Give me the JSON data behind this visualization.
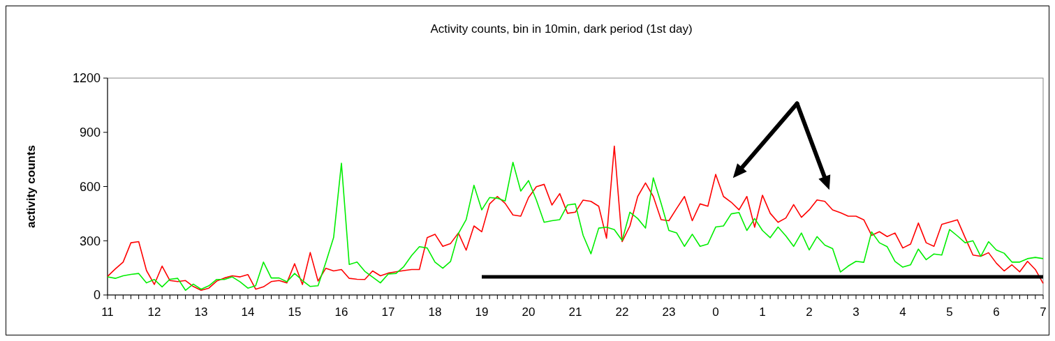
{
  "chart_data": {
    "type": "line",
    "title": "Activity counts, bin in 10min, dark period (1st day)",
    "ylabel": "activity counts",
    "categories": [
      "11",
      null,
      null,
      null,
      null,
      null,
      "12",
      null,
      null,
      null,
      null,
      null,
      "13",
      null,
      null,
      null,
      null,
      null,
      "14",
      null,
      null,
      null,
      null,
      null,
      "15",
      null,
      null,
      null,
      null,
      null,
      "16",
      null,
      null,
      null,
      null,
      null,
      "17",
      null,
      null,
      null,
      null,
      null,
      "18",
      null,
      null,
      null,
      null,
      null,
      "19",
      null,
      null,
      null,
      null,
      null,
      "20",
      null,
      null,
      null,
      null,
      null,
      "21",
      null,
      null,
      null,
      null,
      null,
      "22",
      null,
      null,
      null,
      null,
      null,
      "23",
      null,
      null,
      null,
      null,
      null,
      "0",
      null,
      null,
      null,
      null,
      null,
      "1",
      null,
      null,
      null,
      null,
      null,
      "2",
      null,
      null,
      null,
      null,
      null,
      "3",
      null,
      null,
      null,
      null,
      null,
      "4",
      null,
      null,
      null,
      null,
      null,
      "5",
      null,
      null,
      null,
      null,
      null,
      "6",
      null,
      null,
      null,
      null,
      null,
      "7"
    ],
    "series": [
      {
        "color": "#ff0000",
        "values": [
          103,
          144,
          182,
          289,
          295,
          135,
          58,
          160,
          80,
          74,
          80,
          47,
          26,
          38,
          77,
          94,
          106,
          100,
          113,
          32,
          45,
          74,
          80,
          67,
          173,
          58,
          235,
          77,
          148,
          133,
          141,
          92,
          87,
          86,
          133,
          106,
          121,
          128,
          135,
          141,
          141,
          317,
          336,
          269,
          285,
          343,
          248,
          382,
          350,
          504,
          545,
          507,
          443,
          436,
          539,
          599,
          612,
          498,
          561,
          452,
          458,
          525,
          518,
          491,
          314,
          824,
          295,
          382,
          545,
          620,
          545,
          417,
          411,
          479,
          545,
          411,
          504,
          491,
          667,
          545,
          513,
          471,
          545,
          375,
          552,
          452,
          402,
          426,
          500,
          430,
          471,
          526,
          518,
          471,
          455,
          436,
          436,
          416,
          330,
          350,
          323,
          343,
          260,
          282,
          398,
          289,
          269,
          391,
          403,
          416,
          317,
          221,
          214,
          234,
          176,
          133,
          167,
          128,
          186,
          141,
          64
        ]
      },
      {
        "color": "#00ee00",
        "values": [
          100,
          92,
          106,
          114,
          119,
          67,
          86,
          45,
          87,
          92,
          26,
          60,
          32,
          51,
          86,
          86,
          100,
          73,
          38,
          51,
          182,
          94,
          94,
          73,
          119,
          80,
          47,
          51,
          180,
          318,
          729,
          169,
          182,
          131,
          99,
          67,
          116,
          119,
          157,
          218,
          267,
          260,
          182,
          148,
          186,
          340,
          417,
          607,
          471,
          539,
          535,
          520,
          734,
          575,
          633,
          526,
          402,
          411,
          417,
          498,
          504,
          330,
          228,
          370,
          375,
          362,
          302,
          458,
          423,
          370,
          648,
          507,
          357,
          343,
          269,
          336,
          269,
          282,
          376,
          382,
          449,
          456,
          357,
          423,
          357,
          317,
          376,
          327,
          269,
          343,
          249,
          323,
          276,
          257,
          127,
          160,
          186,
          181,
          349,
          289,
          267,
          186,
          154,
          167,
          254,
          195,
          227,
          221,
          362,
          327,
          289,
          300,
          214,
          295,
          249,
          231,
          182,
          182,
          201,
          208,
          201
        ]
      },
      {
        "color": "#000000",
        "values": [
          null,
          null,
          null,
          null,
          null,
          null,
          null,
          null,
          null,
          null,
          null,
          null,
          null,
          null,
          null,
          null,
          null,
          null,
          null,
          null,
          null,
          null,
          null,
          null,
          null,
          null,
          null,
          null,
          null,
          null,
          null,
          null,
          null,
          null,
          null,
          null,
          null,
          null,
          null,
          null,
          null,
          null,
          null,
          null,
          null,
          null,
          null,
          null,
          100,
          100,
          100,
          100,
          100,
          100,
          100,
          100,
          100,
          100,
          100,
          100,
          100,
          100,
          100,
          100,
          100,
          100,
          100,
          100,
          100,
          100,
          100,
          100,
          100,
          100,
          100,
          100,
          100,
          100,
          100,
          100,
          100,
          100,
          100,
          100,
          100,
          100,
          100,
          100,
          100,
          100,
          100,
          100,
          100,
          100,
          100,
          100,
          100,
          100,
          100,
          100,
          100,
          100,
          100,
          100,
          100,
          100,
          100,
          100,
          100,
          100,
          100,
          100,
          100,
          100,
          100,
          100,
          100,
          100,
          100,
          100,
          100
        ]
      }
    ],
    "ylim": [
      0,
      1200
    ],
    "yticks": [
      0,
      300,
      600,
      900,
      1200
    ],
    "grid": false
  }
}
